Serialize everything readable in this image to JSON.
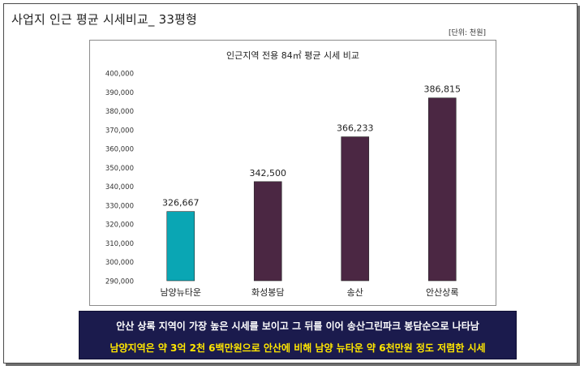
{
  "page": {
    "title": "사업지 인근 평균 시세비교_ 33평형",
    "unit_note": "[단위: 천원]"
  },
  "colors": {
    "highlight_bar": "#0aa6b4",
    "default_bar": "#4b2743",
    "caption_bg": "#1b1b4d",
    "caption_line1": "#ffffff",
    "caption_line2": "#ffe600"
  },
  "chart_data": {
    "type": "bar",
    "title": "인근지역 전용 84㎡ 평균 시세 비교",
    "xlabel": "",
    "ylabel": "",
    "categories": [
      "남양뉴타운",
      "화성봉담",
      "송산",
      "안산상록"
    ],
    "values": [
      326667,
      342500,
      366233,
      386815
    ],
    "value_labels": [
      "326,667",
      "342,500",
      "366,233",
      "386,815"
    ],
    "highlight_index": 0,
    "ylim": [
      290000,
      400000
    ],
    "yticks": [
      290000,
      300000,
      310000,
      320000,
      330000,
      340000,
      350000,
      360000,
      370000,
      380000,
      390000,
      400000
    ],
    "ytick_labels": [
      "290,000",
      "300,000",
      "310,000",
      "320,000",
      "330,000",
      "340,000",
      "350,000",
      "360,000",
      "370,000",
      "380,000",
      "390,000",
      "400,000"
    ],
    "grid": false,
    "legend": "none"
  },
  "caption": {
    "line1": "안산 상록 지역이 가장 높은 시세를 보이고 그 뒤를 이어 송산그린파크 봉담순으로 나타남",
    "line2": "남양지역은 약 3억 2천 6백만원으로 안산에 비해 남양 뉴타운 약 6천만원 정도 저렴한 시세"
  }
}
